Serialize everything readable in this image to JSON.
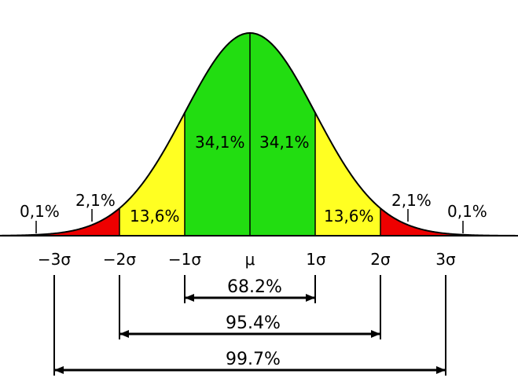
{
  "colors": {
    "center_band": "#22dd11",
    "middle_band": "#ffff22",
    "outer_band": "#ee0000",
    "curve": "#000000",
    "background": "#ffffff"
  },
  "region_labels": {
    "left_tail": "0,1%",
    "left_outer": "2,1%",
    "left_middle": "13,6%",
    "left_center": "34,1%",
    "right_center": "34,1%",
    "right_middle": "13,6%",
    "right_outer": "2,1%",
    "right_tail": "0,1%"
  },
  "axis_ticks": [
    "−3σ",
    "−2σ",
    "−1σ",
    "μ",
    "1σ",
    "2σ",
    "3σ"
  ],
  "intervals": {
    "one_sigma": "68.2%",
    "two_sigma": "95.4%",
    "three_sigma": "99.7%"
  }
}
